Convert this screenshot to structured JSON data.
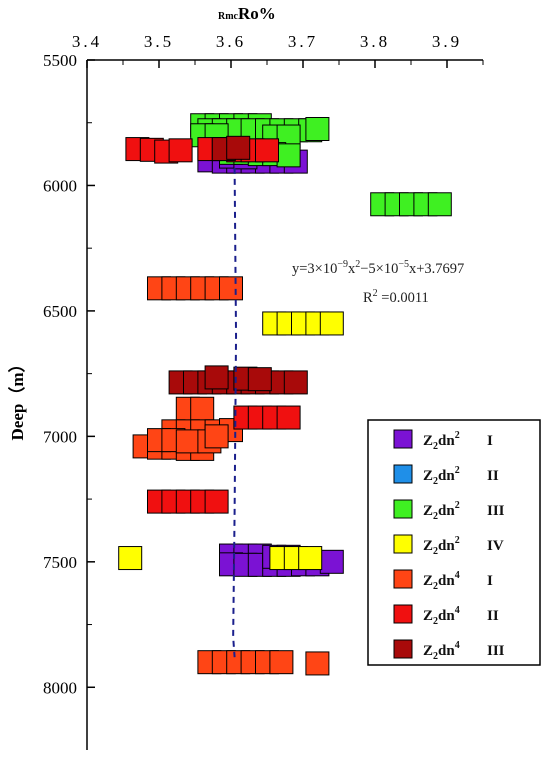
{
  "chart_data": {
    "type": "scatter",
    "title": "",
    "xlabel": {
      "prefix": "Rmc",
      "main": "Ro%"
    },
    "ylabel": "Deep（m）",
    "x_ticks": [
      "3.4",
      "3.5",
      "3.6",
      "3.7",
      "3.8",
      "3.9"
    ],
    "x_tick_values": [
      3.4,
      3.5,
      3.6,
      3.7,
      3.8,
      3.9
    ],
    "xlim": [
      3.4,
      3.95
    ],
    "y_ticks": [
      "5500",
      "6000",
      "6500",
      "7000",
      "7500",
      "8000"
    ],
    "y_tick_values": [
      5500,
      6000,
      6500,
      7000,
      7500,
      8000
    ],
    "ylim": [
      5500,
      8250
    ],
    "y_inverted": true,
    "grid": false,
    "legend_placement": "right",
    "equation": {
      "line1": {
        "base": "y=3×10",
        "exp1": "−9",
        "mid": "x",
        "exp2": "2",
        "rest1": "−5×10",
        "exp3": "−5",
        "rest2": "x+3.7697"
      },
      "line2": {
        "base": "R",
        "exp": "2",
        "rest": " =0.0011"
      }
    },
    "trend_line": {
      "x": [
        3.605,
        3.607,
        3.605,
        3.603,
        3.605
      ],
      "y": [
        5930,
        6600,
        7300,
        7800,
        7880
      ],
      "color": "#1a1f8c",
      "style": "dashed"
    },
    "series": [
      {
        "name": {
          "base": "Z",
          "sub": "2",
          "mid": "dn",
          "sup": "2",
          "roman": "I"
        },
        "color": "#7b12d4",
        "points": [
          [
            3.57,
            5900
          ],
          [
            3.59,
            5905
          ],
          [
            3.61,
            5905
          ],
          [
            3.63,
            5905
          ],
          [
            3.65,
            5905
          ],
          [
            3.67,
            5905
          ],
          [
            3.69,
            5905
          ],
          [
            3.6,
            5885
          ],
          [
            3.62,
            5888
          ],
          [
            3.6,
            7475
          ],
          [
            3.62,
            7475
          ],
          [
            3.64,
            7475
          ],
          [
            3.6,
            7510
          ],
          [
            3.62,
            7512
          ],
          [
            3.64,
            7512
          ],
          [
            3.66,
            7512
          ],
          [
            3.68,
            7512
          ],
          [
            3.7,
            7510
          ],
          [
            3.72,
            7510
          ],
          [
            3.74,
            7500
          ],
          [
            3.66,
            7480
          ],
          [
            3.68,
            7480
          ]
        ]
      },
      {
        "name": {
          "base": "Z",
          "sub": "2",
          "mid": "dn",
          "sup": "2",
          "roman": "II"
        },
        "color": "#1f8fe8",
        "points": []
      },
      {
        "name": {
          "base": "Z",
          "sub": "2",
          "mid": "dn",
          "sup": "2",
          "roman": "III"
        },
        "color": "#3ff022",
        "points": [
          [
            3.56,
            5760
          ],
          [
            3.58,
            5760
          ],
          [
            3.6,
            5760
          ],
          [
            3.62,
            5760
          ],
          [
            3.64,
            5760
          ],
          [
            3.57,
            5780
          ],
          [
            3.59,
            5780
          ],
          [
            3.61,
            5780
          ],
          [
            3.63,
            5780
          ],
          [
            3.65,
            5780
          ],
          [
            3.67,
            5780
          ],
          [
            3.69,
            5780
          ],
          [
            3.71,
            5780
          ],
          [
            3.72,
            5775
          ],
          [
            3.56,
            5800
          ],
          [
            3.58,
            5800
          ],
          [
            3.66,
            5805
          ],
          [
            3.68,
            5805
          ],
          [
            3.6,
            5870
          ],
          [
            3.62,
            5870
          ],
          [
            3.64,
            5875
          ],
          [
            3.66,
            5875
          ],
          [
            3.68,
            5880
          ],
          [
            3.81,
            6075
          ],
          [
            3.83,
            6075
          ],
          [
            3.85,
            6075
          ],
          [
            3.87,
            6075
          ],
          [
            3.89,
            6075
          ]
        ]
      },
      {
        "name": {
          "base": "Z",
          "sub": "2",
          "mid": "dn",
          "sup": "2",
          "roman": "IV"
        },
        "color": "#ffff00",
        "points": [
          [
            3.66,
            6550
          ],
          [
            3.68,
            6550
          ],
          [
            3.7,
            6550
          ],
          [
            3.72,
            6550
          ],
          [
            3.74,
            6550
          ],
          [
            3.46,
            7485
          ],
          [
            3.67,
            7485
          ],
          [
            3.69,
            7485
          ],
          [
            3.71,
            7485
          ]
        ]
      },
      {
        "name": {
          "base": "Z",
          "sub": "2",
          "mid": "dn",
          "sup": "4",
          "roman": "I"
        },
        "color": "#ff4515",
        "points": [
          [
            3.5,
            6410
          ],
          [
            3.52,
            6410
          ],
          [
            3.54,
            6410
          ],
          [
            3.56,
            6410
          ],
          [
            3.58,
            6410
          ],
          [
            3.6,
            6410
          ],
          [
            3.54,
            6890
          ],
          [
            3.56,
            6890
          ],
          [
            3.52,
            6980
          ],
          [
            3.54,
            6980
          ],
          [
            3.56,
            6980
          ],
          [
            3.58,
            6980
          ],
          [
            3.6,
            6975
          ],
          [
            3.48,
            7040
          ],
          [
            3.5,
            7045
          ],
          [
            3.52,
            7045
          ],
          [
            3.54,
            7050
          ],
          [
            3.56,
            7050
          ],
          [
            3.5,
            7015
          ],
          [
            3.52,
            7015
          ],
          [
            3.54,
            7020
          ],
          [
            3.57,
            7020
          ],
          [
            3.58,
            7000
          ],
          [
            3.57,
            7900
          ],
          [
            3.59,
            7900
          ],
          [
            3.61,
            7900
          ],
          [
            3.63,
            7900
          ],
          [
            3.65,
            7900
          ],
          [
            3.67,
            7900
          ],
          [
            3.72,
            7905
          ]
        ]
      },
      {
        "name": {
          "base": "Z",
          "sub": "2",
          "mid": "dn",
          "sup": "4",
          "roman": "II"
        },
        "color": "#f01010",
        "points": [
          [
            3.47,
            5855
          ],
          [
            3.49,
            5858
          ],
          [
            3.51,
            5865
          ],
          [
            3.53,
            5860
          ],
          [
            3.57,
            5855
          ],
          [
            3.59,
            5855
          ],
          [
            3.61,
            5860
          ],
          [
            3.63,
            5860
          ],
          [
            3.65,
            5860
          ],
          [
            3.5,
            7260
          ],
          [
            3.52,
            7260
          ],
          [
            3.54,
            7260
          ],
          [
            3.56,
            7260
          ],
          [
            3.58,
            7260
          ],
          [
            3.62,
            6925
          ],
          [
            3.64,
            6925
          ],
          [
            3.66,
            6925
          ],
          [
            3.68,
            6925
          ]
        ]
      },
      {
        "name": {
          "base": "Z",
          "sub": "2",
          "mid": "dn",
          "sup": "4",
          "roman": "III"
        },
        "color": "#a80a0a",
        "points": [
          [
            3.59,
            5855
          ],
          [
            3.61,
            5850
          ],
          [
            3.53,
            6785
          ],
          [
            3.55,
            6785
          ],
          [
            3.57,
            6785
          ],
          [
            3.59,
            6785
          ],
          [
            3.61,
            6785
          ],
          [
            3.63,
            6785
          ],
          [
            3.65,
            6785
          ],
          [
            3.67,
            6785
          ],
          [
            3.69,
            6785
          ],
          [
            3.58,
            6765
          ],
          [
            3.62,
            6770
          ],
          [
            3.64,
            6772
          ]
        ]
      }
    ]
  }
}
